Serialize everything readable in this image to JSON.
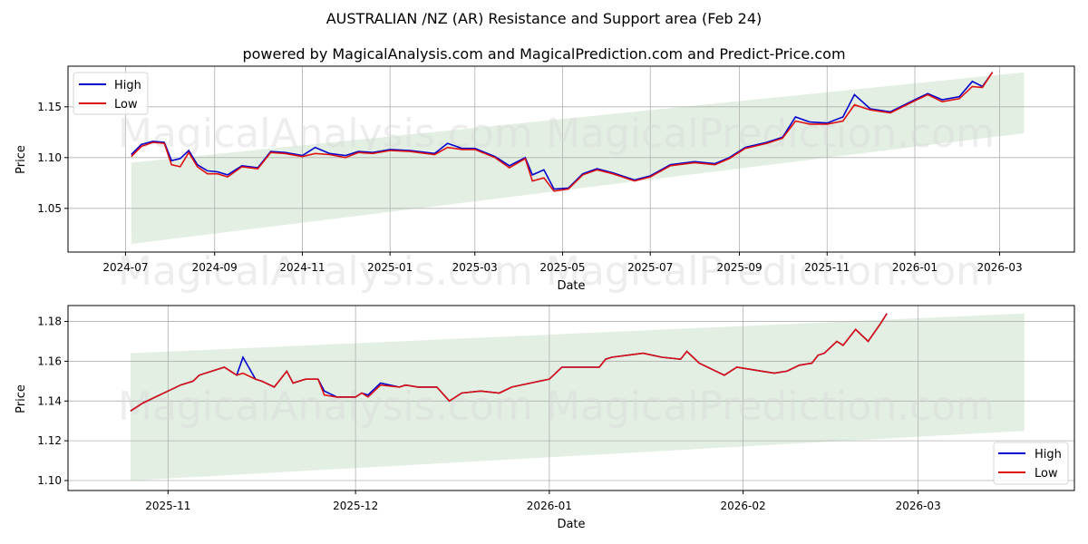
{
  "header": {
    "title": "AUSTRALIAN /NZ (AR) Resistance and Support area (Feb 24)",
    "subtitle": "powered by MagicalAnalysis.com and MagicalPrediction.com and Predict-Price.com"
  },
  "watermarks": [
    "MagicalAnalysis.com",
    "MagicalPrediction.com"
  ],
  "colors": {
    "high": "#0000cc",
    "low": "#dd1111",
    "band": "#e3efe3",
    "grid": "#b0b0b0"
  },
  "chart_data": [
    {
      "type": "line",
      "title": "Full history",
      "xlabel": "Date",
      "ylabel": "Price",
      "ylim": [
        1.007,
        1.19
      ],
      "grid": true,
      "legend_position": "upper left",
      "legend": [
        "High",
        "Low"
      ],
      "x_ticks": [
        "2024-07",
        "2024-09",
        "2024-11",
        "2025-01",
        "2025-03",
        "2025-05",
        "2025-07",
        "2025-09",
        "2025-11",
        "2026-01",
        "2026-03"
      ],
      "y_ticks": [
        "1.05",
        "1.10",
        "1.15"
      ],
      "band": {
        "start": "2024-07-05",
        "end": "2026-03-18",
        "lower_start": 1.015,
        "lower_end": 1.124,
        "upper_start": 1.095,
        "upper_end": 1.184
      },
      "x": [
        "2024-07-05",
        "2024-07-12",
        "2024-07-20",
        "2024-07-28",
        "2024-08-02",
        "2024-08-08",
        "2024-08-14",
        "2024-08-20",
        "2024-08-27",
        "2024-09-03",
        "2024-09-10",
        "2024-09-20",
        "2024-10-01",
        "2024-10-10",
        "2024-10-20",
        "2024-11-01",
        "2024-11-10",
        "2024-11-20",
        "2024-12-01",
        "2024-12-10",
        "2024-12-20",
        "2025-01-01",
        "2025-01-15",
        "2025-02-01",
        "2025-02-10",
        "2025-02-20",
        "2025-03-01",
        "2025-03-15",
        "2025-03-25",
        "2025-04-05",
        "2025-04-10",
        "2025-04-18",
        "2025-04-25",
        "2025-05-05",
        "2025-05-15",
        "2025-05-25",
        "2025-06-05",
        "2025-06-20",
        "2025-07-01",
        "2025-07-15",
        "2025-08-01",
        "2025-08-15",
        "2025-08-25",
        "2025-09-05",
        "2025-09-20",
        "2025-10-01",
        "2025-10-10",
        "2025-10-20",
        "2025-11-01",
        "2025-11-12",
        "2025-11-20",
        "2025-12-01",
        "2025-12-15",
        "2026-01-01",
        "2026-01-10",
        "2026-01-20",
        "2026-02-01",
        "2026-02-10",
        "2026-02-17",
        "2026-02-24"
      ],
      "series": [
        {
          "name": "High",
          "values": [
            1.103,
            1.113,
            1.116,
            1.115,
            1.097,
            1.099,
            1.107,
            1.093,
            1.087,
            1.086,
            1.083,
            1.092,
            1.09,
            1.106,
            1.105,
            1.102,
            1.11,
            1.104,
            1.102,
            1.106,
            1.105,
            1.108,
            1.107,
            1.104,
            1.114,
            1.109,
            1.109,
            1.101,
            1.092,
            1.1,
            1.083,
            1.088,
            1.069,
            1.07,
            1.084,
            1.089,
            1.085,
            1.078,
            1.082,
            1.093,
            1.096,
            1.094,
            1.1,
            1.11,
            1.115,
            1.12,
            1.14,
            1.135,
            1.134,
            1.14,
            1.162,
            1.148,
            1.145,
            1.157,
            1.163,
            1.157,
            1.16,
            1.175,
            1.17,
            1.184
          ]
        },
        {
          "name": "Low",
          "values": [
            1.101,
            1.111,
            1.115,
            1.114,
            1.093,
            1.091,
            1.105,
            1.091,
            1.084,
            1.084,
            1.081,
            1.091,
            1.089,
            1.105,
            1.104,
            1.101,
            1.104,
            1.103,
            1.1,
            1.105,
            1.104,
            1.107,
            1.106,
            1.103,
            1.11,
            1.108,
            1.108,
            1.1,
            1.09,
            1.099,
            1.077,
            1.08,
            1.067,
            1.069,
            1.083,
            1.088,
            1.084,
            1.077,
            1.081,
            1.092,
            1.095,
            1.093,
            1.099,
            1.109,
            1.114,
            1.119,
            1.136,
            1.133,
            1.133,
            1.136,
            1.152,
            1.147,
            1.144,
            1.156,
            1.162,
            1.155,
            1.158,
            1.17,
            1.169,
            1.184
          ]
        }
      ]
    },
    {
      "type": "line",
      "title": "Zoomed recent",
      "xlabel": "Date",
      "ylabel": "Price",
      "ylim": [
        1.095,
        1.188
      ],
      "grid": true,
      "legend_position": "lower right",
      "legend": [
        "High",
        "Low"
      ],
      "x_ticks": [
        "2025-11",
        "2025-12",
        "2026-01",
        "2026-02",
        "2026-03"
      ],
      "y_ticks": [
        "1.10",
        "1.12",
        "1.14",
        "1.16",
        "1.18"
      ],
      "band": {
        "start": "2025-10-26",
        "end": "2026-03-18",
        "lower_start": 1.1,
        "lower_end": 1.125,
        "upper_start": 1.164,
        "upper_end": 1.184
      },
      "x": [
        "2025-10-26",
        "2025-10-28",
        "2025-10-30",
        "2025-11-01",
        "2025-11-03",
        "2025-11-05",
        "2025-11-06",
        "2025-11-08",
        "2025-11-10",
        "2025-11-12",
        "2025-11-13",
        "2025-11-15",
        "2025-11-16",
        "2025-11-18",
        "2025-11-20",
        "2025-11-21",
        "2025-11-23",
        "2025-11-25",
        "2025-11-26",
        "2025-11-28",
        "2025-12-01",
        "2025-12-02",
        "2025-12-03",
        "2025-12-05",
        "2025-12-08",
        "2025-12-09",
        "2025-12-11",
        "2025-12-14",
        "2025-12-16",
        "2025-12-18",
        "2025-12-21",
        "2025-12-24",
        "2025-12-26",
        "2025-12-29",
        "2026-01-01",
        "2026-01-03",
        "2026-01-05",
        "2026-01-07",
        "2026-01-09",
        "2026-01-10",
        "2026-01-11",
        "2026-01-16",
        "2026-01-19",
        "2026-01-22",
        "2026-01-23",
        "2026-01-25",
        "2026-01-29",
        "2026-01-31",
        "2026-02-02",
        "2026-02-04",
        "2026-02-06",
        "2026-02-08",
        "2026-02-10",
        "2026-02-12",
        "2026-02-13",
        "2026-02-14",
        "2026-02-16",
        "2026-02-17",
        "2026-02-19",
        "2026-02-21",
        "2026-02-23",
        "2026-02-24"
      ],
      "series": [
        {
          "name": "High",
          "values": [
            1.135,
            1.139,
            1.142,
            1.145,
            1.148,
            1.15,
            1.153,
            1.155,
            1.157,
            1.153,
            1.162,
            1.151,
            1.15,
            1.147,
            1.155,
            1.149,
            1.151,
            1.151,
            1.145,
            1.142,
            1.142,
            1.144,
            1.143,
            1.149,
            1.147,
            1.148,
            1.147,
            1.147,
            1.14,
            1.144,
            1.145,
            1.144,
            1.147,
            1.149,
            1.151,
            1.157,
            1.157,
            1.157,
            1.157,
            1.161,
            1.162,
            1.164,
            1.162,
            1.161,
            1.165,
            1.159,
            1.153,
            1.157,
            1.156,
            1.155,
            1.154,
            1.155,
            1.158,
            1.159,
            1.163,
            1.164,
            1.17,
            1.168,
            1.176,
            1.17,
            1.179,
            1.184
          ]
        },
        {
          "name": "Low",
          "values": [
            1.135,
            1.139,
            1.142,
            1.145,
            1.148,
            1.15,
            1.153,
            1.155,
            1.157,
            1.153,
            1.154,
            1.151,
            1.15,
            1.147,
            1.155,
            1.149,
            1.151,
            1.151,
            1.143,
            1.142,
            1.142,
            1.144,
            1.142,
            1.148,
            1.147,
            1.148,
            1.147,
            1.147,
            1.14,
            1.144,
            1.145,
            1.144,
            1.147,
            1.149,
            1.151,
            1.157,
            1.157,
            1.157,
            1.157,
            1.161,
            1.162,
            1.164,
            1.162,
            1.161,
            1.165,
            1.159,
            1.153,
            1.157,
            1.156,
            1.155,
            1.154,
            1.155,
            1.158,
            1.159,
            1.163,
            1.164,
            1.17,
            1.168,
            1.176,
            1.17,
            1.179,
            1.184
          ]
        }
      ]
    }
  ]
}
